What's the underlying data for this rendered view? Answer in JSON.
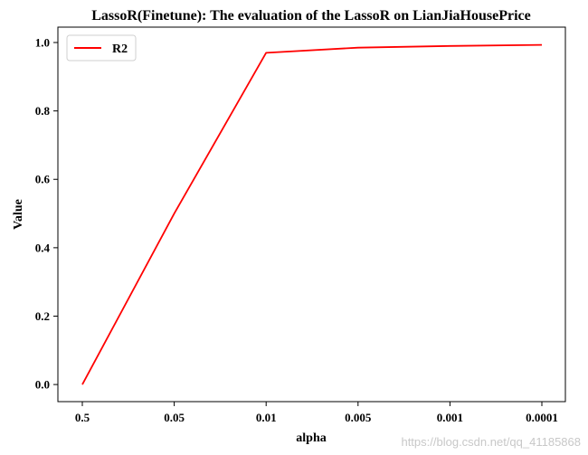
{
  "chart_data": {
    "type": "line",
    "title": "LassoR(Finetune): The evaluation of the LassoR on LianJiaHousePrice",
    "xlabel": "alpha",
    "ylabel": "Value",
    "categories": [
      "0.5",
      "0.05",
      "0.01",
      "0.005",
      "0.001",
      "0.0001"
    ],
    "series": [
      {
        "name": "R2",
        "color": "#ff0000",
        "values": [
          0.0,
          0.5,
          0.97,
          0.985,
          0.99,
          0.993
        ]
      }
    ],
    "ylim": [
      -0.05,
      1.045
    ],
    "yticks": [
      0.0,
      0.2,
      0.4,
      0.6,
      0.8,
      1.0
    ],
    "ytick_labels": [
      "0.0",
      "0.2",
      "0.4",
      "0.6",
      "0.8",
      "1.0"
    ],
    "grid": false,
    "legend": "top-left"
  },
  "watermark": "https://blog.csdn.net/qq_41185868"
}
